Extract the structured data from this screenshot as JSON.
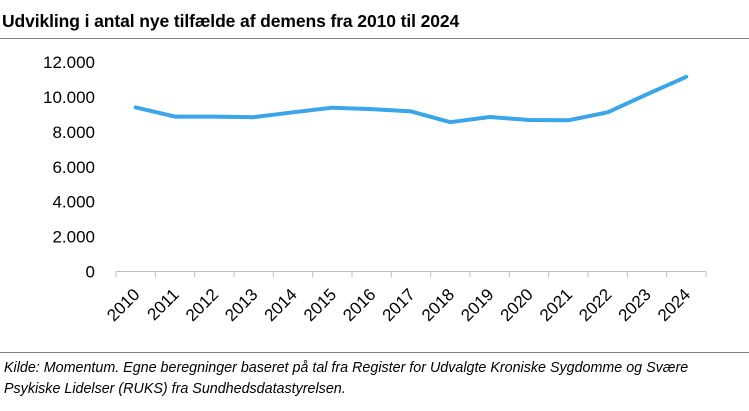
{
  "chart_data": {
    "type": "line",
    "title": "Udvikling i antal nye tilfælde af demens fra 2010 til 2024",
    "x": [
      "2010",
      "2011",
      "2012",
      "2013",
      "2014",
      "2015",
      "2016",
      "2017",
      "2018",
      "2019",
      "2020",
      "2021",
      "2022",
      "2023",
      "2024"
    ],
    "series": [
      {
        "values": [
          9400,
          8870,
          8870,
          8840,
          9120,
          9380,
          9300,
          9170,
          8550,
          8850,
          8680,
          8660,
          9120,
          10150,
          11150
        ]
      }
    ],
    "ylim": [
      0,
      12000
    ],
    "yticks": [
      "0",
      "2.000",
      "4.000",
      "6.000",
      "8.000",
      "10.000",
      "12.000"
    ],
    "xlabel": "",
    "ylabel": "",
    "grid": false,
    "legend": "none",
    "line_color": "#3aa5e9"
  },
  "source": "Kilde: Momentum. Egne beregninger baseret på tal fra Register for Udvalgte Kroniske Sygdomme og Svære Psykiske Lidelser (RUKS) fra Sundhedsdatastyrelsen."
}
